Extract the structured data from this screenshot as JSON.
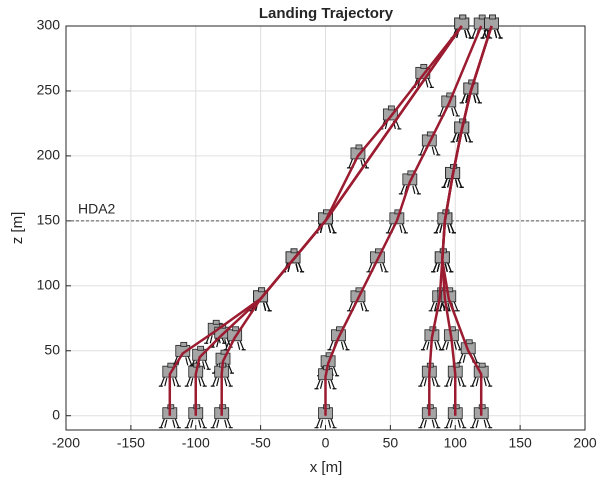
{
  "chart_data": {
    "type": "line",
    "title": "Landing Trajectory",
    "x_label": "x [m]",
    "y_label": "z [m]",
    "xlim": [
      -200,
      200
    ],
    "xticks": [
      -200,
      -150,
      -100,
      -50,
      0,
      50,
      100,
      150,
      200
    ],
    "ylim": [
      -11,
      300
    ],
    "yticks": [
      0,
      50,
      100,
      150,
      200,
      250,
      300
    ],
    "grid": true,
    "hlines": [
      {
        "value": 150,
        "label": "HDA2"
      }
    ],
    "series": [
      {
        "color": "#9b1b30",
        "x": [
          105,
          75,
          50,
          25,
          0,
          -25,
          -50,
          -85,
          -110,
          -120,
          -120
        ],
        "values": [
          300,
          262,
          230,
          200,
          150,
          120,
          90,
          65,
          48,
          32,
          0
        ]
      },
      {
        "color": "#9b1b30",
        "x": [
          105,
          0,
          -25,
          -50,
          -80,
          -97,
          -100,
          -100
        ],
        "values": [
          300,
          150,
          120,
          90,
          62,
          45,
          32,
          0
        ]
      },
      {
        "color": "#9b1b30",
        "x": [
          105,
          0,
          -25,
          -50,
          -70,
          -79,
          -80,
          -80
        ],
        "values": [
          300,
          150,
          120,
          90,
          60,
          42,
          32,
          0
        ]
      },
      {
        "color": "#9b1b30",
        "x": [
          120,
          95,
          80,
          65,
          55,
          40,
          25,
          10,
          2,
          0,
          0
        ],
        "values": [
          300,
          240,
          210,
          180,
          150,
          120,
          90,
          60,
          40,
          30,
          0
        ]
      },
      {
        "color": "#9b1b30",
        "x": [
          128,
          112,
          105,
          98,
          92,
          90,
          88,
          82,
          80,
          80
        ],
        "values": [
          300,
          250,
          220,
          185,
          150,
          120,
          90,
          60,
          32,
          0
        ]
      },
      {
        "color": "#9b1b30",
        "x": [
          128,
          112,
          105,
          98,
          92,
          90,
          92,
          97,
          100,
          100
        ],
        "values": [
          300,
          250,
          220,
          185,
          150,
          120,
          90,
          60,
          32,
          0
        ]
      },
      {
        "color": "#9b1b30",
        "x": [
          128,
          112,
          105,
          98,
          92,
          90,
          95,
          110,
          120,
          120
        ],
        "values": [
          300,
          250,
          220,
          185,
          150,
          120,
          90,
          50,
          32,
          0
        ]
      }
    ]
  }
}
